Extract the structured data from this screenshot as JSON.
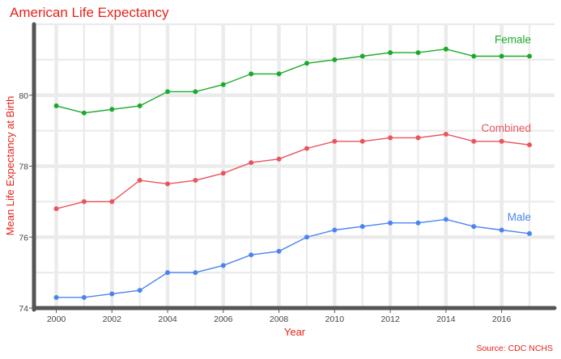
{
  "chart_data": {
    "type": "line",
    "title": "American Life Expectancy",
    "xlabel": "Year",
    "ylabel": "Mean Life Expectancy at Birth",
    "caption": "Source: CDC NCHS",
    "x": [
      2000,
      2001,
      2002,
      2003,
      2004,
      2005,
      2006,
      2007,
      2008,
      2009,
      2010,
      2011,
      2012,
      2013,
      2014,
      2015,
      2016,
      2017
    ],
    "x_ticks": [
      "2000",
      "2002",
      "2004",
      "2006",
      "2008",
      "2010",
      "2012",
      "2014",
      "2016"
    ],
    "y_ticks": [
      "74",
      "76",
      "78",
      "80"
    ],
    "xlim": [
      1999.2,
      2017.9
    ],
    "ylim": [
      74.0,
      82.0
    ],
    "grid": true,
    "series": [
      {
        "name": "Female",
        "color": "#1aaa2a",
        "values": [
          79.7,
          79.5,
          79.6,
          79.7,
          80.1,
          80.1,
          80.3,
          80.6,
          80.6,
          80.9,
          81.0,
          81.1,
          81.2,
          81.2,
          81.3,
          81.1,
          81.1,
          81.1
        ]
      },
      {
        "name": "Combined",
        "color": "#e8555c",
        "values": [
          76.8,
          77.0,
          77.0,
          77.6,
          77.5,
          77.6,
          77.8,
          78.1,
          78.2,
          78.5,
          78.7,
          78.7,
          78.8,
          78.8,
          78.9,
          78.7,
          78.7,
          78.6
        ]
      },
      {
        "name": "Male",
        "color": "#4a84f0",
        "values": [
          74.3,
          74.3,
          74.4,
          74.5,
          75.0,
          75.0,
          75.2,
          75.5,
          75.6,
          76.0,
          76.2,
          76.3,
          76.4,
          76.4,
          76.5,
          76.3,
          76.2,
          76.1
        ]
      }
    ],
    "colors": {
      "title": "#e8221a",
      "axis_title": "#e8221a",
      "caption": "#e8221a",
      "grid": "#ebebeb",
      "axis_line": "#555555"
    }
  }
}
